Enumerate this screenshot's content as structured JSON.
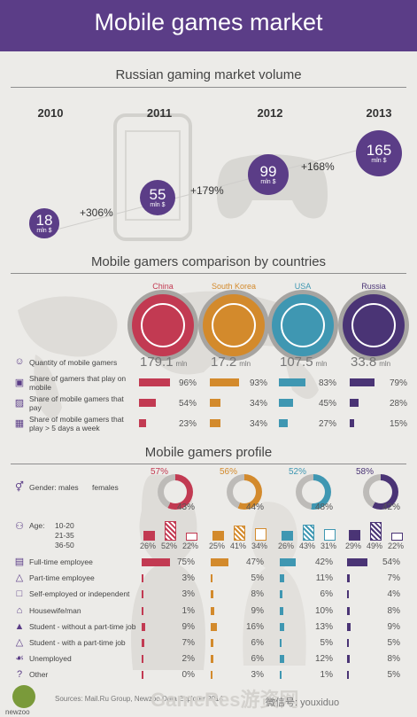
{
  "header": {
    "title": "Mobile games market"
  },
  "colors": {
    "purple": "#5b3d87",
    "red": "#c23a52",
    "orange": "#d38a2c",
    "blue": "#3f97b2",
    "dark_purple": "#4a3475"
  },
  "market": {
    "title": "Russian gaming market volume",
    "unit": "mln $",
    "years": [
      "2010",
      "2011",
      "2012",
      "2013"
    ],
    "values": [
      "18",
      "55",
      "99",
      "165"
    ],
    "growth": [
      "+306%",
      "+179%",
      "+168%"
    ]
  },
  "countries": {
    "title": "Mobile gamers comparison by countries",
    "names": [
      "China",
      "South Korea",
      "USA",
      "Russia"
    ],
    "quantity_label": "Quantity of mobile gamers",
    "quantity": [
      "179.1",
      "17.2",
      "107.5",
      "33.8"
    ],
    "quantity_unit": "mln",
    "metric_labels": [
      "Share of gamers that play on mobile",
      "Share of mobile gamers that pay",
      "Share of mobile gamers that play > 5 days a week"
    ],
    "metric_pct": [
      [
        "96%",
        "93%",
        "83%",
        "79%"
      ],
      [
        "54%",
        "34%",
        "45%",
        "28%"
      ],
      [
        "23%",
        "34%",
        "27%",
        "15%"
      ]
    ]
  },
  "profile": {
    "title": "Mobile gamers profile",
    "gender_label": "Gender:",
    "gender_legend": [
      "males",
      "females"
    ],
    "males": [
      "57%",
      "56%",
      "52%",
      "58%"
    ],
    "females": [
      "43%",
      "44%",
      "48%",
      "42%"
    ],
    "age_label": "Age:",
    "age_groups": [
      "10-20",
      "21-35",
      "36-50"
    ],
    "age_pct": [
      [
        "26%",
        "52%",
        "22%"
      ],
      [
        "25%",
        "41%",
        "34%"
      ],
      [
        "26%",
        "43%",
        "31%"
      ],
      [
        "29%",
        "49%",
        "22%"
      ]
    ],
    "occupations": [
      "Full-time employee",
      "Part-time employee",
      "Self-employed or independent",
      "Housewife/man",
      "Student - without a part-time job",
      "Student - with a part-time job",
      "Unemployed",
      "Other"
    ],
    "occupation_pct": [
      [
        "75%",
        "47%",
        "42%",
        "54%"
      ],
      [
        "3%",
        "5%",
        "11%",
        "7%"
      ],
      [
        "3%",
        "8%",
        "6%",
        "4%"
      ],
      [
        "1%",
        "9%",
        "10%",
        "8%"
      ],
      [
        "9%",
        "16%",
        "13%",
        "9%"
      ],
      [
        "7%",
        "6%",
        "5%",
        "5%"
      ],
      [
        "2%",
        "6%",
        "12%",
        "8%"
      ],
      [
        "0%",
        "3%",
        "1%",
        "5%"
      ]
    ]
  },
  "footer": {
    "logo": "newzoo",
    "sources": "Sources: Mail.Ru Group, Newzoo Data Explorer 2014",
    "watermark": "GameRes游资网",
    "wechat": "微信号: youxiduo"
  },
  "chart_data": [
    {
      "type": "bar",
      "title": "Russian gaming market volume",
      "categories": [
        "2010",
        "2011",
        "2012",
        "2013"
      ],
      "values": [
        18,
        55,
        99,
        165
      ],
      "ylabel": "mln $"
    },
    {
      "type": "bar",
      "title": "Mobile gamers comparison by countries",
      "categories": [
        "China",
        "South Korea",
        "USA",
        "Russia"
      ],
      "series": [
        {
          "name": "Quantity of mobile gamers",
          "values": [
            179.1,
            17.2,
            107.5,
            33.8
          ]
        },
        {
          "name": "Share of gamers that play on mobile",
          "values": [
            96,
            93,
            83,
            79
          ]
        },
        {
          "name": "Share of mobile gamers that pay",
          "values": [
            54,
            34,
            45,
            28
          ]
        },
        {
          "name": "Share of mobile gamers that play > 5 days a week",
          "values": [
            23,
            34,
            27,
            15
          ]
        }
      ]
    },
    {
      "type": "bar",
      "title": "Mobile gamers profile",
      "categories": [
        "China",
        "South Korea",
        "USA",
        "Russia"
      ],
      "series": [
        {
          "name": "males",
          "values": [
            57,
            56,
            52,
            58
          ]
        },
        {
          "name": "females",
          "values": [
            43,
            44,
            48,
            42
          ]
        },
        {
          "name": "10-20",
          "values": [
            26,
            25,
            26,
            29
          ]
        },
        {
          "name": "21-35",
          "values": [
            52,
            41,
            43,
            49
          ]
        },
        {
          "name": "36-50",
          "values": [
            22,
            34,
            31,
            22
          ]
        },
        {
          "name": "Full-time employee",
          "values": [
            75,
            47,
            42,
            54
          ]
        },
        {
          "name": "Part-time employee",
          "values": [
            3,
            5,
            11,
            7
          ]
        },
        {
          "name": "Self-employed or independent",
          "values": [
            3,
            8,
            6,
            4
          ]
        },
        {
          "name": "Housewife/man",
          "values": [
            1,
            9,
            10,
            8
          ]
        },
        {
          "name": "Student - without a part-time job",
          "values": [
            9,
            16,
            13,
            9
          ]
        },
        {
          "name": "Student - with a part-time job",
          "values": [
            7,
            6,
            5,
            5
          ]
        },
        {
          "name": "Unemployed",
          "values": [
            2,
            6,
            12,
            8
          ]
        },
        {
          "name": "Other",
          "values": [
            0,
            3,
            1,
            5
          ]
        }
      ]
    }
  ]
}
